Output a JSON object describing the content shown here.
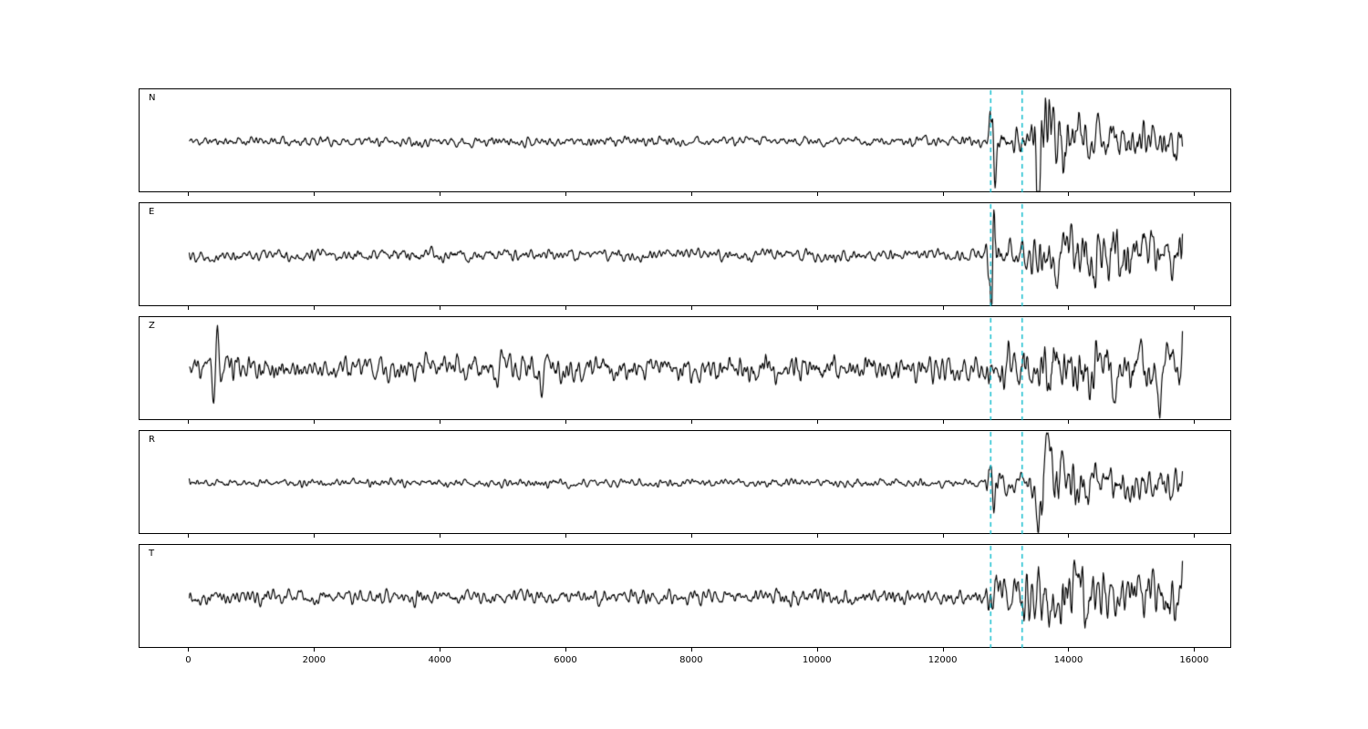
{
  "figure": {
    "background": "#ffffff"
  },
  "chart_data": {
    "type": "line",
    "subtype": "seismogram-multichannel",
    "title": "",
    "xlabel": "",
    "ylabel": "",
    "grid": false,
    "legend": false,
    "x_ticks": [
      0,
      2000,
      4000,
      6000,
      8000,
      10000,
      12000,
      14000,
      16000
    ],
    "xlim": [
      -790,
      16590
    ],
    "x_max": 15800,
    "dx": 10,
    "trace_color": "#000000",
    "pick_lines": {
      "positions": [
        12750,
        13250
      ],
      "color": "#17becf",
      "style": "dashed"
    },
    "channels": [
      {
        "label": "N",
        "seed": 11,
        "envelope": [
          [
            0,
            3.5
          ],
          [
            12650,
            3.5
          ],
          [
            12720,
            3.5
          ],
          [
            12760,
            26
          ],
          [
            12950,
            9
          ],
          [
            13350,
            10
          ],
          [
            13500,
            38
          ],
          [
            13800,
            26
          ],
          [
            14300,
            16
          ],
          [
            15800,
            13
          ]
        ],
        "spikes": [
          {
            "x": 12790,
            "amp": -34,
            "w": 70
          },
          {
            "x": 13560,
            "amp": 30,
            "w": 120
          }
        ]
      },
      {
        "label": "E",
        "seed": 22,
        "envelope": [
          [
            0,
            4.5
          ],
          [
            12650,
            4.5
          ],
          [
            12760,
            30
          ],
          [
            12950,
            9
          ],
          [
            13250,
            9
          ],
          [
            13500,
            20
          ],
          [
            13800,
            24
          ],
          [
            15800,
            17
          ]
        ],
        "spikes": [
          {
            "x": 12780,
            "amp": 36,
            "w": 60
          }
        ]
      },
      {
        "label": "Z",
        "seed": 33,
        "envelope": [
          [
            0,
            9
          ],
          [
            12650,
            10
          ],
          [
            12760,
            16
          ],
          [
            13300,
            18
          ],
          [
            13600,
            22
          ],
          [
            15000,
            20
          ],
          [
            15800,
            18
          ]
        ],
        "spikes": [
          {
            "x": 420,
            "amp": 34,
            "w": 60
          },
          {
            "x": 4950,
            "amp": 26,
            "w": 80
          },
          {
            "x": 5650,
            "amp": 18,
            "w": 90
          },
          {
            "x": 15400,
            "amp": -22,
            "w": 80
          }
        ]
      },
      {
        "label": "R",
        "seed": 44,
        "envelope": [
          [
            0,
            3
          ],
          [
            12650,
            3
          ],
          [
            12760,
            22
          ],
          [
            12950,
            8
          ],
          [
            13400,
            9
          ],
          [
            13560,
            38
          ],
          [
            13850,
            24
          ],
          [
            14400,
            15
          ],
          [
            15800,
            12
          ]
        ],
        "spikes": [
          {
            "x": 12780,
            "amp": -26,
            "w": 60
          },
          {
            "x": 13600,
            "amp": 32,
            "w": 110
          }
        ]
      },
      {
        "label": "T",
        "seed": 55,
        "envelope": [
          [
            0,
            5.5
          ],
          [
            12650,
            5.5
          ],
          [
            12760,
            24
          ],
          [
            13050,
            11
          ],
          [
            13450,
            26
          ],
          [
            14200,
            24
          ],
          [
            15800,
            17
          ]
        ],
        "spikes": [
          {
            "x": 12790,
            "amp": 28,
            "w": 70
          }
        ]
      }
    ]
  }
}
